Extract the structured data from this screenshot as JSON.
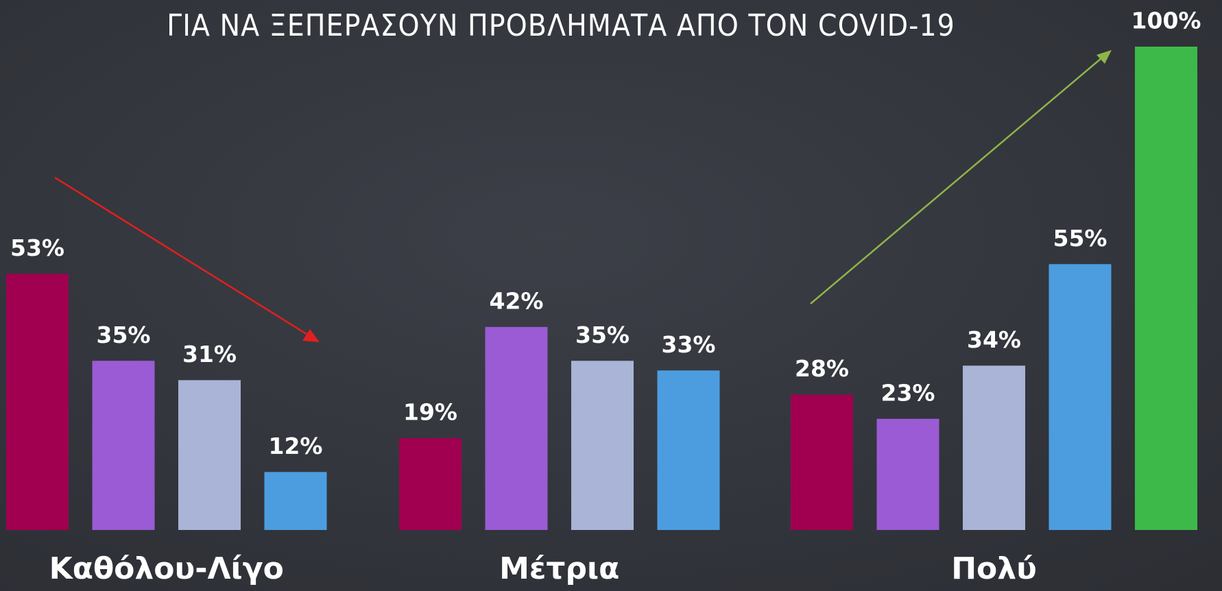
{
  "chart_data": {
    "type": "bar",
    "title": "ΓΙΑ ΝΑ ΞΕΠΕΡΑΣΟΥΝ ΠΡΟΒΛΗΜΑΤΑ ΑΠΟ ΤΟΝ COVID-19",
    "categories": [
      "Καθόλου-Λίγο",
      "Μέτρια",
      "Πολύ"
    ],
    "series": [
      {
        "color": "#a0004f",
        "values": [
          53,
          19,
          28
        ],
        "value_labels": [
          "53%",
          "19%",
          "28%"
        ]
      },
      {
        "color": "#9b5bd4",
        "values": [
          35,
          42,
          23
        ],
        "value_labels": [
          "35%",
          "42%",
          "23%"
        ]
      },
      {
        "color": "#a9b4d6",
        "values": [
          31,
          35,
          34
        ],
        "value_labels": [
          "31%",
          "35%",
          "34%"
        ]
      },
      {
        "color": "#4c9de0",
        "values": [
          12,
          33,
          55
        ],
        "value_labels": [
          "12%",
          "33%",
          "55%"
        ]
      },
      {
        "color": "#3db94a",
        "values": [
          null,
          null,
          100
        ],
        "value_labels": [
          null,
          null,
          "100%"
        ]
      }
    ],
    "ylim": [
      0,
      100
    ]
  }
}
